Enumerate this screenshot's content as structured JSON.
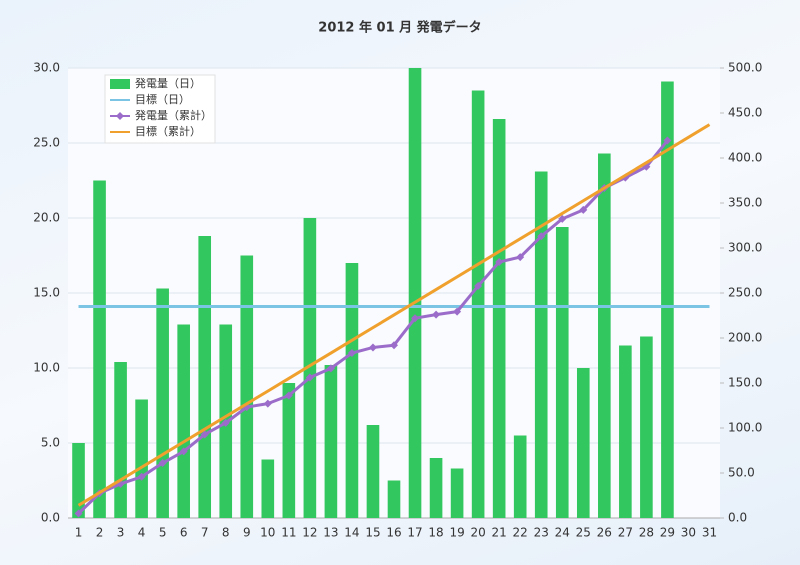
{
  "chart_data": {
    "type": "bar",
    "title": "2012 年 01 月 発電データ",
    "categories": [
      "1",
      "2",
      "3",
      "4",
      "5",
      "6",
      "7",
      "8",
      "9",
      "10",
      "11",
      "12",
      "13",
      "14",
      "15",
      "16",
      "17",
      "18",
      "19",
      "20",
      "21",
      "22",
      "23",
      "24",
      "25",
      "26",
      "27",
      "28",
      "29",
      "30",
      "31"
    ],
    "ylim": [
      0,
      30
    ],
    "yticks": [
      {
        "value": 0,
        "label": "0.0"
      },
      {
        "value": 5,
        "label": "5.0"
      },
      {
        "value": 10,
        "label": "10.0"
      },
      {
        "value": 15,
        "label": "15.0"
      },
      {
        "value": 20,
        "label": "20.0"
      },
      {
        "value": 25,
        "label": "25.0"
      },
      {
        "value": 30,
        "label": "30.0"
      }
    ],
    "y2lim": [
      0,
      500
    ],
    "y2ticks": [
      {
        "value": 0,
        "label": "0.0"
      },
      {
        "value": 50,
        "label": "50.0"
      },
      {
        "value": 100,
        "label": "100.0"
      },
      {
        "value": 150,
        "label": "150.0"
      },
      {
        "value": 200,
        "label": "200.0"
      },
      {
        "value": 250,
        "label": "250.0"
      },
      {
        "value": 300,
        "label": "300.0"
      },
      {
        "value": 350,
        "label": "350.0"
      },
      {
        "value": 400,
        "label": "400.0"
      },
      {
        "value": 450,
        "label": "450.0"
      },
      {
        "value": 500,
        "label": "500.0"
      }
    ],
    "grid": true,
    "legend": "top-left",
    "series": [
      {
        "name": "発電量（日）",
        "type": "bar",
        "color": "#33c75f",
        "values": [
          5.0,
          22.5,
          10.4,
          7.9,
          15.3,
          12.9,
          18.8,
          12.9,
          17.5,
          3.9,
          9.0,
          20.0,
          10.2,
          17.0,
          6.2,
          2.5,
          30.0,
          4.0,
          3.3,
          28.5,
          26.6,
          5.5,
          23.1,
          19.4,
          10.0,
          24.3,
          11.5,
          12.1,
          29.1,
          null,
          null
        ]
      },
      {
        "name": "目標（日）",
        "type": "line",
        "color": "#7cc4e4",
        "values": [
          14.1,
          14.1,
          14.1,
          14.1,
          14.1,
          14.1,
          14.1,
          14.1,
          14.1,
          14.1,
          14.1,
          14.1,
          14.1,
          14.1,
          14.1,
          14.1,
          14.1,
          14.1,
          14.1,
          14.1,
          14.1,
          14.1,
          14.1,
          14.1,
          14.1,
          14.1,
          14.1,
          14.1,
          14.1,
          14.1,
          14.1
        ]
      },
      {
        "name": "発電量（累計）",
        "type": "line",
        "axis": "y2",
        "marker": "diamond",
        "color": "#9b6cc9",
        "values": [
          5.0,
          27.5,
          37.9,
          45.8,
          61.1,
          74.0,
          92.8,
          105.7,
          123.2,
          127.1,
          136.1,
          156.1,
          166.3,
          183.3,
          189.5,
          192.0,
          222.0,
          226.0,
          229.3,
          257.8,
          284.4,
          289.9,
          313.0,
          332.4,
          342.4,
          366.7,
          378.2,
          390.3,
          419.4,
          null,
          null
        ]
      },
      {
        "name": "目標（累計）",
        "type": "line",
        "axis": "y2",
        "color": "#f0a02c",
        "values": [
          14.1,
          28.2,
          42.3,
          56.4,
          70.5,
          84.6,
          98.7,
          112.8,
          126.9,
          141.0,
          155.1,
          169.2,
          183.3,
          197.4,
          211.5,
          225.6,
          239.7,
          253.8,
          267.9,
          282.0,
          296.1,
          310.2,
          324.3,
          338.4,
          352.5,
          366.6,
          380.7,
          394.8,
          408.9,
          423.0,
          437.1
        ]
      }
    ]
  }
}
